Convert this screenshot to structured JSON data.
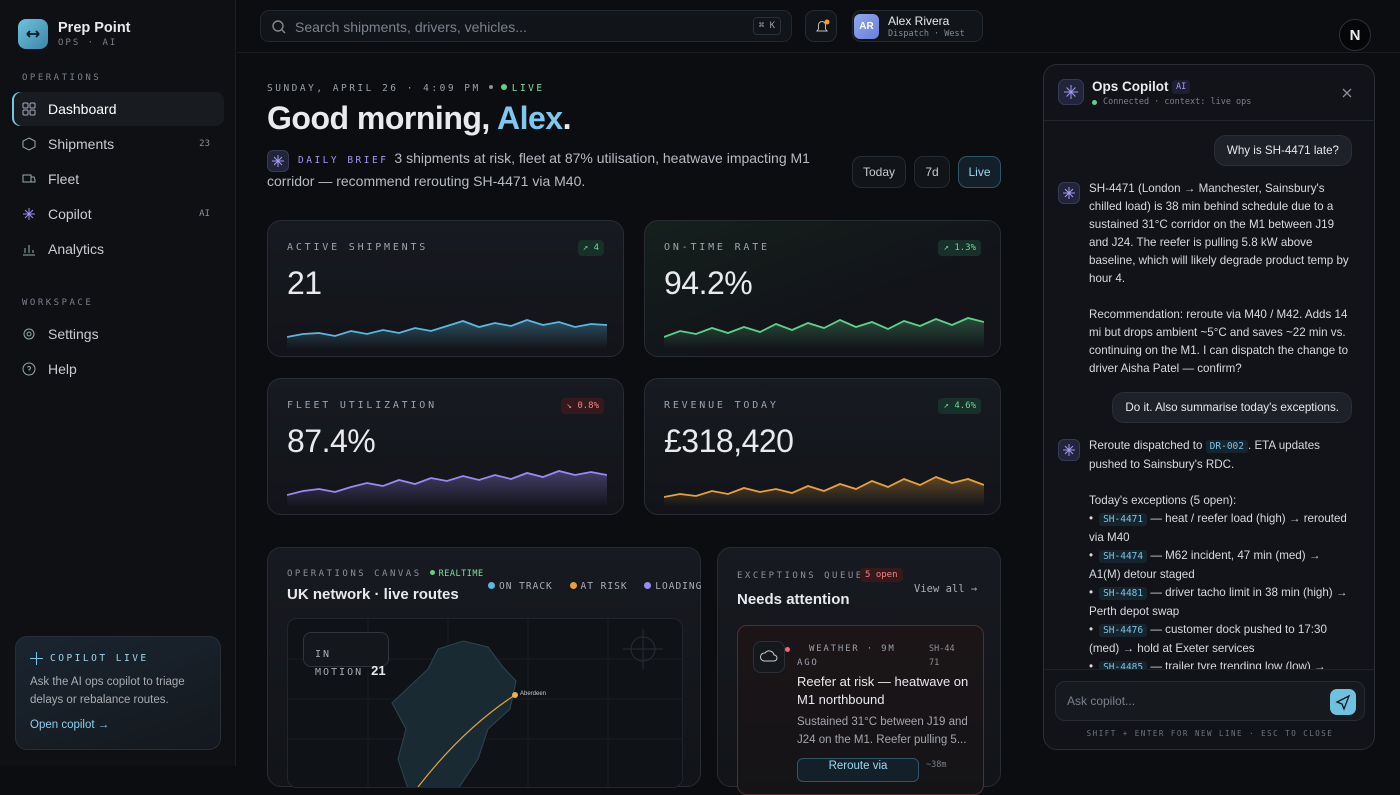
{
  "brand": {
    "name": "Prep Point",
    "tagline": "OPS · AI"
  },
  "sidebar": {
    "sections": [
      {
        "label": "OPERATIONS",
        "items": [
          {
            "label": "Dashboard"
          },
          {
            "label": "Shipments",
            "badge": "23"
          },
          {
            "label": "Fleet"
          },
          {
            "label": "Copilot",
            "badge": "AI"
          },
          {
            "label": "Analytics"
          }
        ]
      },
      {
        "label": "WORKSPACE",
        "items": [
          {
            "label": "Settings"
          },
          {
            "label": "Help"
          }
        ]
      }
    ],
    "promo": {
      "title": "COPILOT LIVE",
      "text": "Ask the AI ops copilot to triage delays or rebalance routes.",
      "link": "Open copilot →"
    }
  },
  "topbar": {
    "search_placeholder": "Search shipments, drivers, vehicles...",
    "shortcut": "⌘ K",
    "user": {
      "initials": "AR",
      "name": "Alex Rivera",
      "role": "Dispatch · West"
    },
    "account_initial": "N"
  },
  "header": {
    "date": "SUNDAY, APRIL 26 · 4:09 PM",
    "live": "LIVE",
    "greeting": {
      "prefix": "Good morning, ",
      "name": "Alex",
      "suffix": "."
    },
    "brief_label": "DAILY BRIEF",
    "brief": "3 shipments at risk, fleet at 87% utilisation, heatwave impacting M1 corridor — recommend rerouting SH-4471 via M40.",
    "ranges": [
      "Today",
      "7d",
      "Live"
    ]
  },
  "kpis": [
    {
      "label": "ACTIVE SHIPMENTS",
      "value": "21",
      "delta": "↗ 4"
    },
    {
      "label": "ON-TIME RATE",
      "value": "94.2%",
      "delta": "↗ 1.3%"
    },
    {
      "label": "FLEET UTILIZATION",
      "value": "87.4%",
      "delta": "↘ 0.8%"
    },
    {
      "label": "REVENUE TODAY",
      "value": "£318,420",
      "delta": "↗ 4.6%"
    }
  ],
  "ops_canvas": {
    "eyebrow": "OPERATIONS CANVAS",
    "realtime": "REALTIME",
    "title": "UK network · live routes",
    "legend": [
      "ON TRACK",
      "AT RISK",
      "LOADING"
    ],
    "in_motion_label": "IN MOTION",
    "in_motion": "21",
    "city": "Aberdeen"
  },
  "exceptions": {
    "eyebrow": "EXCEPTIONS QUEUE",
    "count": "5 open",
    "title": "Needs attention",
    "view_all": "View all →",
    "items": [
      {
        "meta": "WEATHER · 9M AGO",
        "id": "SH-4471",
        "title": "Reefer at risk — heatwave on M1 northbound",
        "text": "Sustained 31°C between J19 and J24 on the M1. Reefer pulling 5...",
        "action": "Reroute via",
        "eta": "~38m"
      }
    ]
  },
  "copilot": {
    "title": "Ops Copilot",
    "badge": "AI",
    "status": "Connected · context: live ops",
    "messages": [
      {
        "text": "Why is SH-4471 late?"
      },
      {
        "paragraphs": [
          "SH-4471 (London → Manchester, Sainsbury's chilled load) is 38 min behind schedule due to a sustained 31°C corridor on the M1 between J19 and J24. The reefer is pulling 5.8 kW above baseline, which will likely degrade product temp by hour 4.",
          "Recommendation: reroute via M40 / M42. Adds 14 mi but drops ambient ~5°C and saves ~22 min vs. continuing on the M1. I can dispatch the change to driver Aisha Patel — confirm?"
        ]
      },
      {
        "text": "Do it. Also summarise today's exceptions."
      },
      {
        "before": "Reroute dispatched to ",
        "code": "DR-002",
        "after": ". ETA updates pushed to Sainsbury's RDC.",
        "list_intro": "Today's exceptions (5 open):",
        "list": [
          {
            "code": "SH-4471",
            "text": " — heat / reefer load (high) → rerouted via M40"
          },
          {
            "code": "SH-4474",
            "text": " — M62 incident, 47 min (med) → A1(M) detour staged"
          },
          {
            "code": "SH-4481",
            "text": " — driver tacho limit in 38 min (high) → Perth depot swap"
          },
          {
            "code": "SH-4476",
            "text": " — customer dock pushed to 17:30 (med) → hold at Exeter services"
          },
          {
            "code": "SH-4485",
            "text": " — trailer tyre trending low (low) →"
          }
        ]
      }
    ],
    "input_placeholder": "Ask copilot...",
    "hint": "SHIFT + ENTER FOR NEW LINE · ESC TO CLOSE"
  }
}
